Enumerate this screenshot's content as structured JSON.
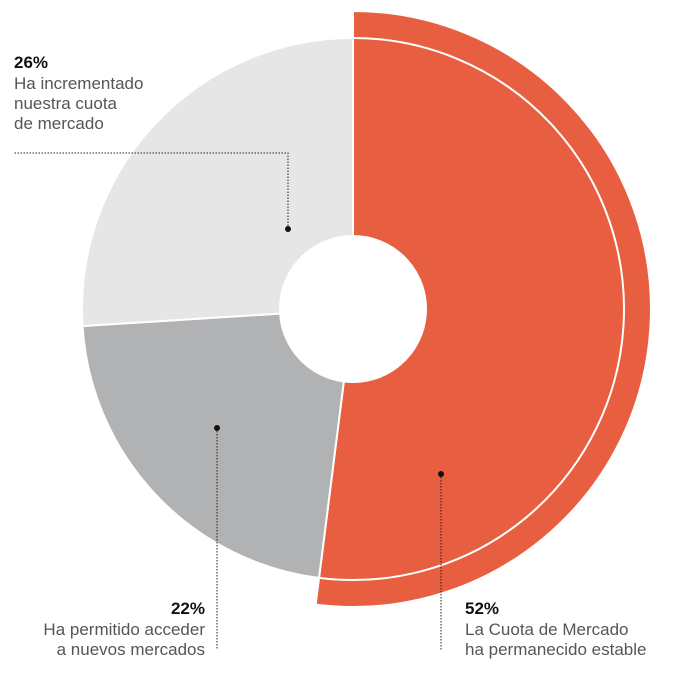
{
  "chart_data": {
    "type": "donut",
    "categories": [
      [
        "La Cuota de Mercado",
        "ha permanecido estable"
      ],
      [
        "Ha permitido acceder",
        "a nuevos mercados"
      ],
      [
        "Ha incrementado",
        "nuestra cuota",
        "de mercado"
      ]
    ],
    "values": [
      52,
      22,
      26
    ],
    "value_labels": [
      "52%",
      "22%",
      "26%"
    ],
    "colors": [
      "#e85e40",
      "#b1b2b4",
      "#e6e6e7"
    ],
    "highlight": 0
  }
}
